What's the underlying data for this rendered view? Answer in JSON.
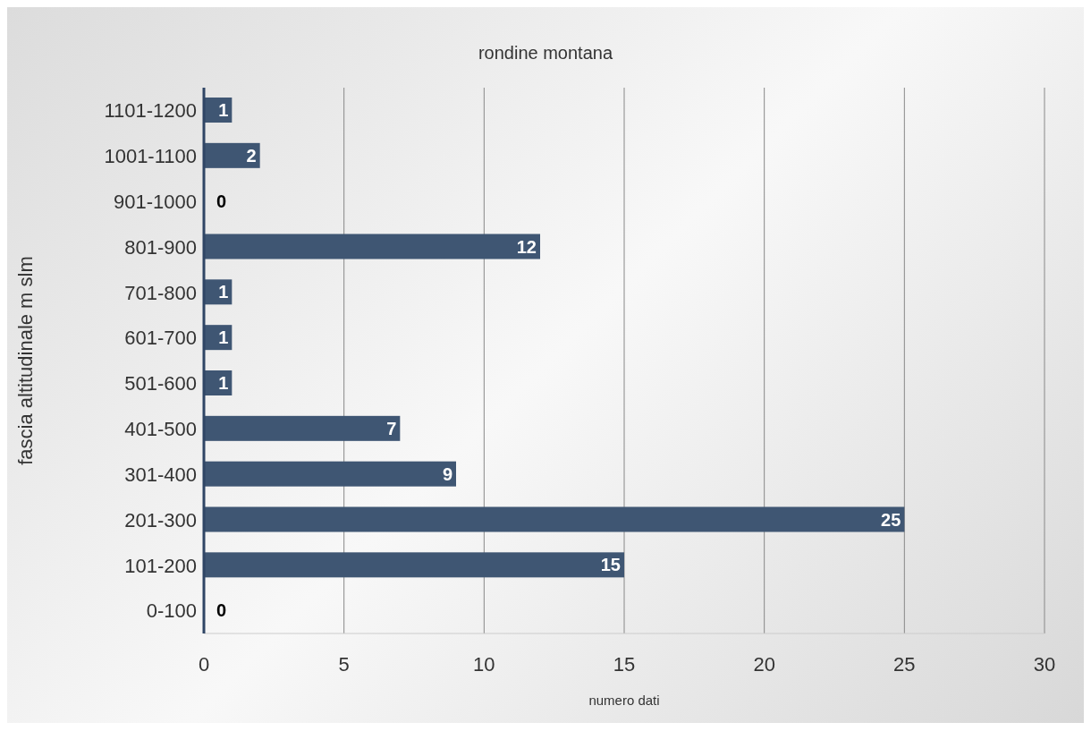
{
  "chart_data": {
    "type": "bar",
    "orientation": "horizontal",
    "title": "rondine montana",
    "xlabel": "numero dati",
    "ylabel": "fascia altitudinale m slm",
    "categories": [
      "1101-1200",
      "1001-1100",
      "901-1000",
      "801-900",
      "701-800",
      "601-700",
      "501-600",
      "401-500",
      "301-400",
      "201-300",
      "101-200",
      "0-100"
    ],
    "values": [
      1,
      2,
      0,
      12,
      1,
      1,
      1,
      7,
      9,
      25,
      15,
      0
    ],
    "color": "#3f5673",
    "xlim": [
      0,
      30
    ],
    "xticks": [
      0,
      5,
      10,
      15,
      20,
      25,
      30
    ],
    "grid": "x",
    "data_labels": true
  }
}
